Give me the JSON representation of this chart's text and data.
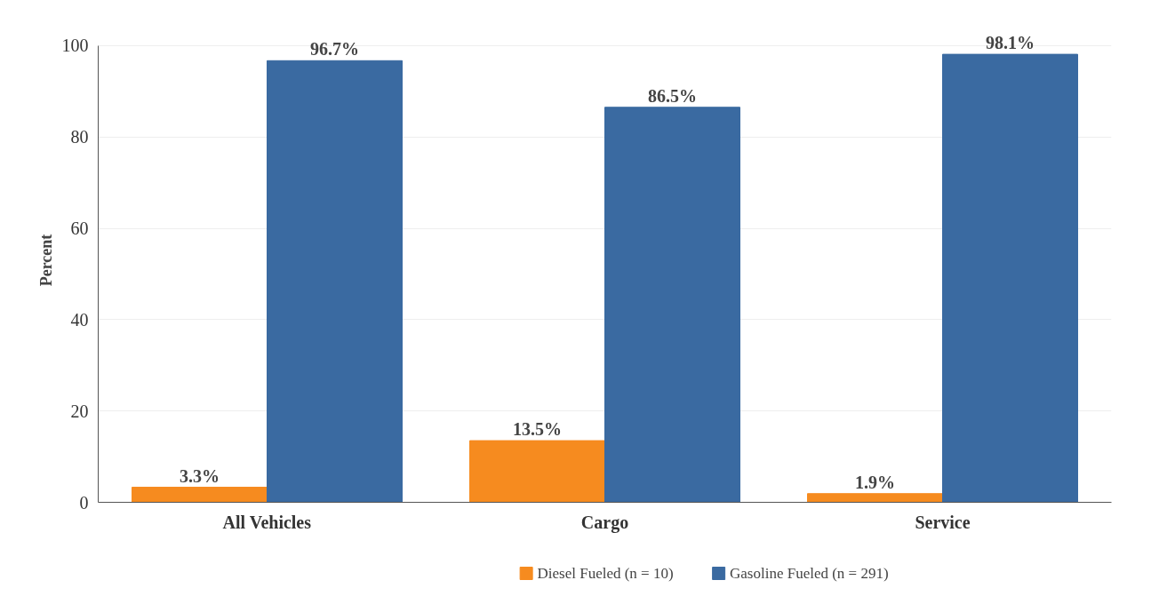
{
  "chart_data": {
    "type": "bar",
    "ylabel": "Percent",
    "categories": [
      "All Vehicles",
      "Cargo",
      "Service"
    ],
    "series": [
      {
        "name": "Diesel Fueled (n = 10)",
        "color": "#f68b1f",
        "values": [
          3.3,
          13.5,
          1.9
        ],
        "value_labels": [
          "3.3%",
          "13.5%",
          "1.9%"
        ]
      },
      {
        "name": "Gasoline Fueled (n = 291)",
        "color": "#3a6aa1",
        "values": [
          96.7,
          86.5,
          98.1
        ],
        "value_labels": [
          "96.7%",
          "86.5%",
          "98.1%"
        ]
      }
    ],
    "ylim": [
      0,
      100
    ],
    "yticks": [
      0,
      20,
      40,
      60,
      80,
      100
    ],
    "grid": "y",
    "legend": "bottom"
  }
}
